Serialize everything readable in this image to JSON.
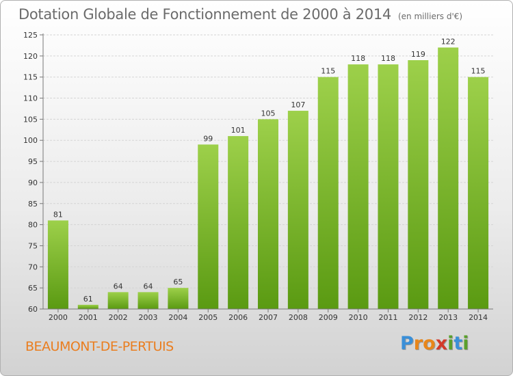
{
  "title": "Dotation Globale de Fonctionnement de 2000 à 2014",
  "subtitle": "(en milliers d'€)",
  "commune": "BEAUMONT-DE-PERTUIS",
  "logo": {
    "letters": [
      "P",
      "r",
      "o",
      "x",
      "i",
      "t",
      "i"
    ],
    "colors": [
      "#3a8fd8",
      "#e8861a",
      "#e8861a",
      "#d23a2a",
      "#5aa02c",
      "#3a8fd8",
      "#5aa02c"
    ]
  },
  "colors": {
    "bar_light": "#9dd04a",
    "bar_dark": "#5a9a12",
    "commune": "#ea7d1e"
  },
  "chart_data": {
    "type": "bar",
    "title": "Dotation Globale de Fonctionnement de 2000 à 2014",
    "subtitle": "(en milliers d'€)",
    "categories": [
      "2000",
      "2001",
      "2002",
      "2003",
      "2004",
      "2005",
      "2006",
      "2007",
      "2008",
      "2009",
      "2010",
      "2011",
      "2012",
      "2013",
      "2014"
    ],
    "values": [
      81,
      61,
      64,
      64,
      65,
      99,
      101,
      105,
      107,
      115,
      118,
      118,
      119,
      122,
      115
    ],
    "ylim": [
      60,
      125
    ],
    "yticks": [
      60,
      65,
      70,
      75,
      80,
      85,
      90,
      95,
      100,
      105,
      110,
      115,
      120,
      125
    ],
    "grid": true
  }
}
